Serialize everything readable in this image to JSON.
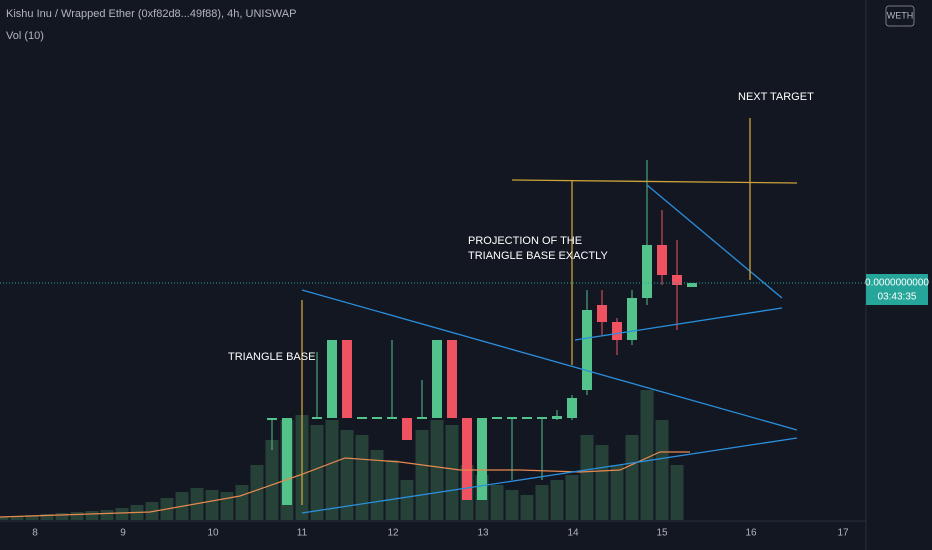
{
  "header": {
    "symbol": "Kishu Inu / Wrapped Ether (0xf82d8...49f88), 4h, UNISWAP",
    "indicator": "Vol (10)",
    "currency_badge": "WETH"
  },
  "annotations": [
    "TRIANGLE BASE",
    "PROJECTION OF THE",
    "TRIANGLE BASE EXACTLY",
    "NEXT TARGET"
  ],
  "price_label": {
    "price": "0.0000000000",
    "countdown": "03:43:35"
  },
  "time_axis": [
    "8",
    "9",
    "10",
    "11",
    "12",
    "13",
    "14",
    "15",
    "16",
    "17"
  ]
}
